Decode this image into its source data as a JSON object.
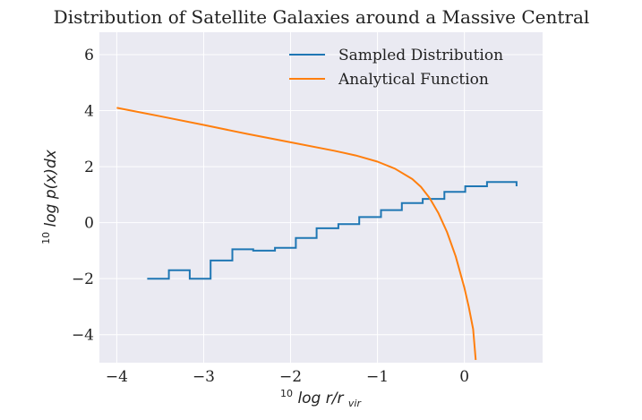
{
  "chart_data": {
    "type": "line",
    "title": "Distribution of Satellite Galaxies around a Massive Central",
    "xlabel_base": "10",
    "xlabel_main": "log  r/r",
    "xlabel_sub": "vir",
    "ylabel_base": "10",
    "ylabel_main": "log  p(x)dx",
    "xlim": [
      -4.2,
      0.9
    ],
    "ylim": [
      -5.0,
      6.8
    ],
    "xticks": [
      -4,
      -3,
      -2,
      -1,
      0
    ],
    "xtick_labels": [
      "−4",
      "−3",
      "−2",
      "−1",
      "0"
    ],
    "yticks": [
      -4,
      -2,
      0,
      2,
      4,
      6
    ],
    "ytick_labels": [
      "−4",
      "−2",
      "0",
      "2",
      "4",
      "6"
    ],
    "grid": true,
    "legend_position": "top-right",
    "series": [
      {
        "name": "Sampled Distribution",
        "color": "#1f77b4",
        "style": "step",
        "edges": [
          -3.65,
          -3.4,
          -3.16,
          -2.92,
          -2.67,
          -2.43,
          -2.18,
          -1.94,
          -1.7,
          -1.45,
          -1.21,
          -0.96,
          -0.72,
          -0.48,
          -0.23,
          0.01,
          0.26,
          0.6
        ],
        "values": [
          -2.0,
          -1.7,
          -2.0,
          -1.35,
          -0.95,
          -1.0,
          -0.9,
          -0.55,
          -0.2,
          -0.05,
          0.2,
          0.45,
          0.7,
          0.85,
          1.1,
          1.3,
          1.45,
          1.3
        ]
      },
      {
        "name": "Analytical Function",
        "color": "#ff7f0e",
        "style": "line",
        "x": [
          -4.0,
          -3.5,
          -3.0,
          -2.5,
          -2.0,
          -1.5,
          -1.25,
          -1.0,
          -0.8,
          -0.6,
          -0.5,
          -0.4,
          -0.3,
          -0.2,
          -0.1,
          0.0,
          0.05,
          0.1,
          0.13
        ],
        "y": [
          4.1,
          3.8,
          3.49,
          3.17,
          2.87,
          2.57,
          2.4,
          2.18,
          1.93,
          1.56,
          1.28,
          0.88,
          0.35,
          -0.33,
          -1.2,
          -2.32,
          -3.0,
          -3.8,
          -4.9
        ]
      }
    ]
  }
}
